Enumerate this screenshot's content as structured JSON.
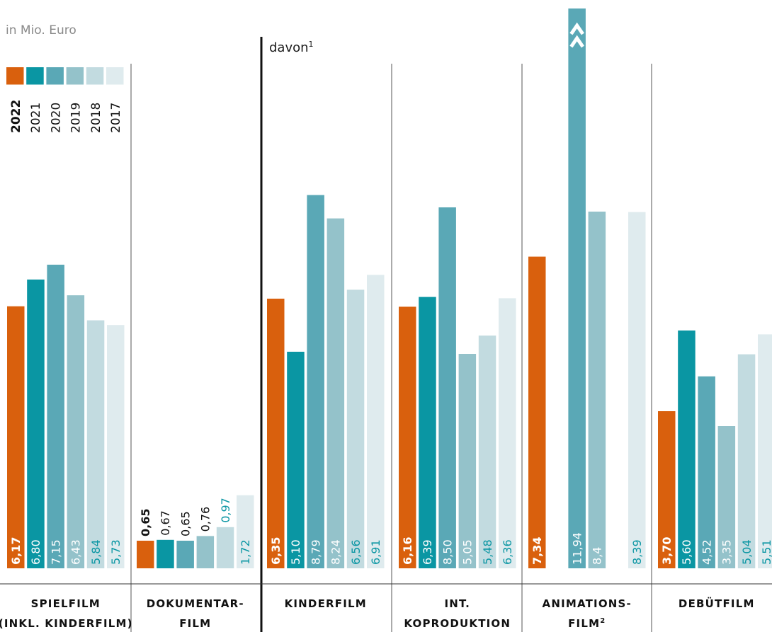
{
  "chart_data": {
    "type": "bar",
    "unit_label": "in Mio. Euro",
    "davon_label": "davon",
    "davon_footnote": "1",
    "years": [
      "2022",
      "2021",
      "2020",
      "2019",
      "2018",
      "2017"
    ],
    "colors": [
      "#d9600d",
      "#0a96a3",
      "#5aa8b6",
      "#94c2ca",
      "#c2dbe0",
      "#dfebee"
    ],
    "value_label_colors": [
      "#ffffff",
      "#ffffff",
      "#ffffff",
      "#ffffff",
      "#0a96a3",
      "#0a96a3"
    ],
    "groups": [
      {
        "name_lines": [
          "SPIELFILM",
          "(INKL. KINDERFILM)"
        ],
        "values": [
          6.17,
          6.8,
          7.15,
          6.43,
          5.84,
          5.73
        ],
        "labels": [
          "6,17",
          "6,80",
          "7,15",
          "6,43",
          "5,84",
          "5,73"
        ]
      },
      {
        "name_lines": [
          "DOKUMENTAR-",
          "FILM"
        ],
        "values": [
          0.65,
          0.67,
          0.65,
          0.76,
          0.97,
          1.72
        ],
        "labels": [
          "0,65",
          "0,67",
          "0,65",
          "0,76",
          "0,97",
          "1,72"
        ]
      },
      {
        "name_lines": [
          "KINDERFILM"
        ],
        "values": [
          6.35,
          5.1,
          8.79,
          8.24,
          6.56,
          6.91
        ],
        "labels": [
          "6,35",
          "5,10",
          "8,79",
          "8,24",
          "6,56",
          "6,91"
        ]
      },
      {
        "name_lines": [
          "INT.",
          "KOPRODUKTION"
        ],
        "values": [
          6.16,
          6.39,
          8.5,
          5.05,
          5.48,
          6.36
        ],
        "labels": [
          "6,16",
          "6,39",
          "8,50",
          "5,05",
          "5,48",
          "6,36"
        ]
      },
      {
        "name_lines": [
          "ANIMATIONS-",
          "FILM"
        ],
        "name_footnote": "2",
        "values": [
          7.34,
          null,
          11.94,
          8.4,
          null,
          8.39
        ],
        "labels": [
          "7,34",
          "",
          "11,94",
          "8,4",
          "",
          "8,39"
        ],
        "axis_break_series": 2
      },
      {
        "name_lines": [
          "DEBÜTFILM"
        ],
        "values": [
          3.7,
          5.6,
          4.52,
          3.35,
          5.04,
          5.51
        ],
        "labels": [
          "3,70",
          "5,60",
          "4,52",
          "3,35",
          "5,04",
          "5,51"
        ]
      }
    ]
  }
}
